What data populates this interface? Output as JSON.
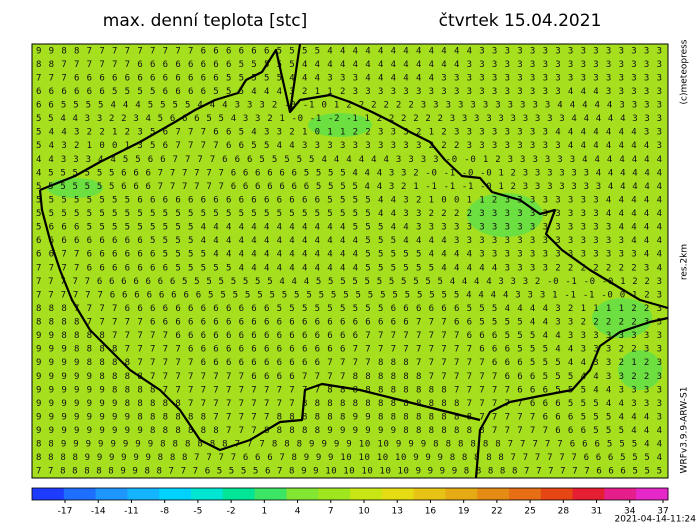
{
  "header": {
    "title": "max. denní teplota [stc]",
    "date": "čtvrtek 15.04.2021"
  },
  "side": {
    "copyright": "(c)meteopress",
    "resolution": "res.2km",
    "model": "WRFv3.9.9-ARW-S1"
  },
  "footer": {
    "timestamp": "2021-04-14-11:24"
  },
  "grid": {
    "rows": [
      "9 9 8 8 7 7 7 7 7 7 7 7 7 6 6 6 6 6 6 5 5 5 5 4 4 4 4 4 4 4 4 4 4 4 4 3 3 3 3 3 3 3 3 3 3 3 3 3 3 3",
      "8 8 7 7 7 7 7 7 6 6 6 6 6 6 6 6 5 5 5 5 5 4 4 4 4 4 4 4 4 4 4 4 4 4 3 3 3 3 3 3 3 3 3 3 3 3 3 3 3 3",
      "7 7 7 6 6 6 6 6 6 6 6 6 6 6 6 5 5 5 5 5 4 4 4 3 3 3 4 4 4 4 4 4 3 3 3 3 3 3 3 3 3 3 3 3 3 3 3 3 3 3",
      "6 6 6 6 6 6 5 5 5 5 6 6 6 6 5 5 5 4 4 4 3 2 1 1 2 3 3 3 3 3 3 3 3 3 3 3 3 3 3 3 3 3 4 4 4 3 3 3 3 3",
      "6 6 5 5 5 5 4 4 4 5 5 5 5 4 4 4 3 3 3 2 -0 -1 0 1 2 2 2 2 2 2 3 3 3 3 3 3 3 3 3 3 3 4 4 4 4 4 3 3 3 3",
      "5 5 4 4 3 3 2 2 3 4 5 6 6 6 5 5 4 3 3 2 1 -0 -1 -2 -1 1 2 2 2 2 2 2 3 3 3 3 3 3 3 3 3 3 4 4 4 4 4 3 3 3",
      "5 4 4 3 2 2 1 2 3 5 6 7 7 7 6 6 5 4 3 3 2 1 0 1 1 2 2 3 3 3 2 1 2 3 3 3 3 3 3 3 3 4 4 4 4 4 4 4 3 3",
      "5 4 3 2 1 0 0 1 3 5 6 7 7 7 7 6 6 5 5 4 4 3 3 3 3 3 3 3 3 3 3 2 2 2 3 3 3 3 3 3 3 3 4 4 4 4 4 4 4 3",
      "4 4 3 3 3 4 4 5 5 6 6 7 7 7 7 6 6 6 5 5 5 5 5 4 4 4 4 4 4 3 3 3 3 -0 -0 1 2 3 3 3 3 3 3 4 4 4 4 4 4 4",
      "4 5 5 5 5 5 5 6 6 6 7 7 7 7 7 7 6 6 6 6 6 6 5 5 5 5 4 4 4 3 3 2 -0 -1 -0 -0 1 2 3 3 3 3 3 3 4 4 4 4 4 4",
      "5 5 5 5 5 5 5 6 6 6 7 7 7 7 7 7 6 6 6 6 6 6 6 5 5 5 5 4 4 3 2 1 -1 -1 -1 -0 1 2 3 3 3 3 3 3 3 4 4 4 4 4",
      "5 5 5 5 5 5 5 5 6 6 6 6 6 6 6 6 6 6 6 6 6 6 6 5 5 5 5 4 4 3 2 1 0 0 1 1 2 3 3 3 3 3 3 3 3 4 4 4 4 4",
      "5 5 5 5 5 5 5 5 5 5 5 5 5 5 5 5 5 5 5 5 5 5 5 5 5 5 5 4 4 3 3 2 2 2 2 3 3 3 3 3 3 3 3 3 3 4 4 4 4 4",
      "5 6 6 6 5 5 5 5 5 5 5 5 5 4 4 4 4 4 4 4 4 4 4 4 4 5 5 5 4 4 3 3 3 3 3 3 3 3 3 3 3 3 3 3 3 3 4 4 4 4",
      "6 6 6 6 6 6 6 6 6 5 5 5 5 4 4 4 4 4 4 4 4 4 4 4 4 4 5 5 5 4 4 4 4 3 3 3 3 3 3 3 3 3 3 3 3 3 3 4 4 4",
      "6 6 7 7 6 6 6 6 6 6 5 5 5 5 4 4 4 4 4 4 4 4 4 4 4 4 5 5 5 5 5 4 4 4 4 3 3 3 3 3 3 3 3 3 3 3 3 3 4 4",
      "7 7 7 7 6 6 6 6 6 6 6 5 5 5 5 5 4 4 4 4 4 4 4 4 4 4 5 5 5 5 5 5 4 4 4 4 4 3 3 3 3 2 2 2 2 2 2 2 3 4",
      "7 7 7 7 7 6 6 6 6 6 6 6 5 5 5 5 5 5 5 5 4 4 4 5 5 5 5 5 5 5 5 5 5 5 4 4 4 4 3 3 3 2 -0 -1 -0 -0 1 2 2 3",
      "7 7 7 7 7 7 6 6 6 6 6 6 6 6 5 5 5 5 5 5 5 5 5 5 5 5 5 5 5 5 5 5 5 5 5 4 4 4 4 3 3 3 1 -1 -1 -0 0 1 2 3",
      "8 8 8 7 7 7 7 6 6 6 6 6 6 6 6 6 6 6 6 5 5 5 5 5 5 5 5 5 6 6 6 6 6 6 5 5 5 4 4 4 4 3 2 1 1 1 1 2 2 3",
      "8 8 8 8 7 7 7 7 7 6 6 6 6 6 6 6 6 6 6 6 6 6 6 6 6 6 6 6 6 6 7 7 7 6 6 5 5 5 5 4 4 3 3 2 2 2 2 2 3 3",
      "9 9 8 8 8 8 7 7 7 7 7 6 6 6 6 6 6 6 6 6 6 6 6 6 6 6 7 7 7 7 7 7 7 7 6 6 6 5 5 5 4 4 3 3 3 3 3 3 3 3",
      "9 9 9 8 8 8 8 7 7 7 7 7 6 6 6 6 6 6 6 6 6 6 6 6 6 7 7 7 7 7 7 7 7 7 7 6 6 6 5 5 5 4 4 3 3 3 2 2 3 3",
      "9 9 9 9 8 8 8 8 7 7 7 7 7 6 6 6 6 6 6 6 6 6 6 7 7 7 7 8 8 8 7 7 7 7 7 7 6 6 6 5 5 5 4 4 3 3 2 1 2 3",
      "9 9 9 9 9 8 8 8 8 7 7 7 7 7 7 7 7 6 6 6 6 7 7 7 7 8 8 8 8 8 8 7 7 7 7 7 7 6 6 6 5 5 5 4 4 3 3 2 2 3",
      "9 9 9 9 9 9 8 8 8 8 7 7 7 7 7 7 7 7 7 7 7 7 7 8 8 8 8 8 8 8 8 8 8 7 7 7 7 7 6 6 6 5 5 5 4 4 3 3 3 3",
      "9 9 9 9 9 9 9 8 8 8 8 8 7 7 7 7 7 7 7 7 7 8 8 8 8 8 8 8 8 8 8 8 8 8 7 7 7 7 7 6 6 6 5 5 5 4 4 3 3 3",
      "9 9 9 9 9 9 9 9 8 8 8 8 8 8 7 7 7 7 7 8 8 8 8 8 8 9 9 8 8 8 8 8 8 8 8 7 7 7 7 7 6 6 6 5 5 5 4 4 4 3",
      "9 9 9 9 9 9 9 9 9 8 8 8 8 8 8 7 7 7 8 8 8 8 8 9 9 9 9 9 9 8 8 8 8 8 8 8 7 7 7 7 7 6 6 6 5 5 5 4 4 4",
      "8 8 9 9 9 9 9 9 9 9 8 8 8 8 8 8 7 7 7 8 8 8 9 9 9 9 10 10 9 9 9 8 8 8 8 8 8 7 7 7 7 7 6 6 6 5 5 5 4 4",
      "8 8 8 8 9 9 9 9 9 9 8 8 8 7 7 7 7 6 6 6 7 8 9 9 9 10 10 10 10 9 9 9 8 8 8 8 8 7 7 7 7 7 7 6 6 6 5 5 5 4",
      "7 7 8 8 8 8 8 9 9 8 8 7 7 7 6 5 5 5 5 6 7 8 9 9 10 10 10 10 10 9 9 9 9 8 8 8 8 8 7 7 7 7 7 7 6 6 6 5 5 5"
    ]
  },
  "colorbar": {
    "ticks": [
      -17,
      -14,
      -11,
      -8,
      -5,
      -2,
      1,
      4,
      7,
      10,
      13,
      16,
      19,
      22,
      25,
      28,
      31,
      34,
      37
    ],
    "colors": [
      "#1e3cff",
      "#1e6eff",
      "#1e96ff",
      "#14b4ff",
      "#00d2ff",
      "#00e6d2",
      "#00e696",
      "#3ce664",
      "#82e632",
      "#a0e61e",
      "#c8e614",
      "#e6dc14",
      "#e6c314",
      "#e6aa14",
      "#e68c14",
      "#e66e14",
      "#e64614",
      "#e61e32",
      "#e61e8c",
      "#e628c8"
    ]
  }
}
